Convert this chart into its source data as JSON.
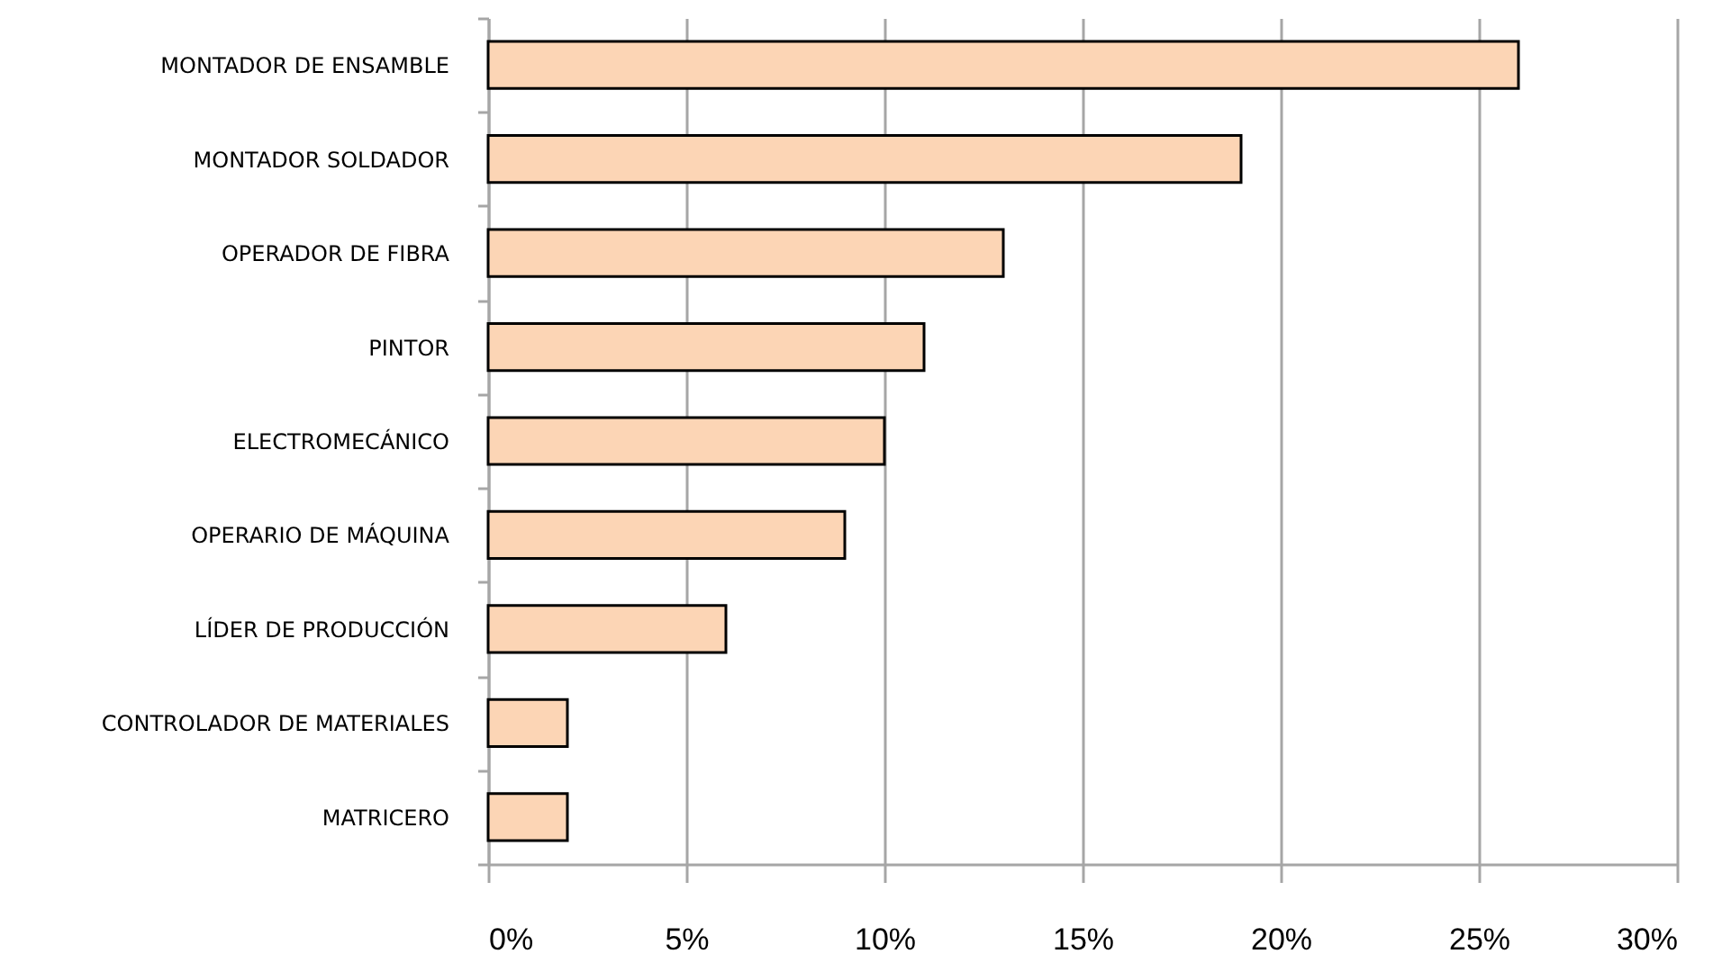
{
  "chart_data": {
    "type": "bar",
    "orientation": "horizontal",
    "categories": [
      "MONTADOR DE ENSAMBLE",
      "MONTADOR SOLDADOR",
      "OPERADOR DE FIBRA",
      "PINTOR",
      "ELECTROMECÁNICO",
      "OPERARIO DE MÁQUINA",
      "LÍDER DE PRODUCCIÓN",
      "CONTROLADOR DE MATERIALES",
      "MATRICERO"
    ],
    "values": [
      26,
      19,
      13,
      11,
      10,
      9,
      6,
      2,
      2
    ],
    "color": "#fcd5b5",
    "xlim": [
      0,
      30
    ],
    "xticks": [
      {
        "value": 0,
        "label": "0%"
      },
      {
        "value": 5,
        "label": "5%"
      },
      {
        "value": 10,
        "label": "10%"
      },
      {
        "value": 15,
        "label": "15%"
      },
      {
        "value": 20,
        "label": "20%"
      },
      {
        "value": 25,
        "label": "25%"
      },
      {
        "value": 30,
        "label": "30%"
      }
    ],
    "grid": "x"
  }
}
